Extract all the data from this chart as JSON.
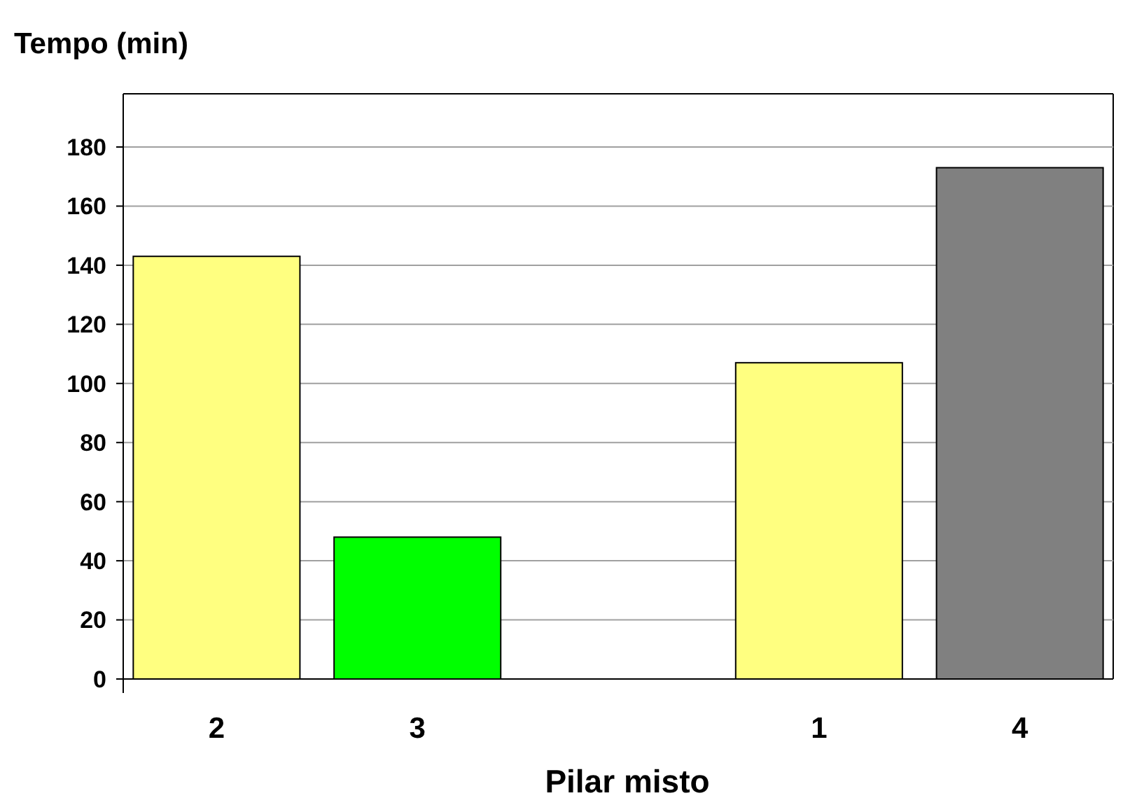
{
  "chart_data": {
    "type": "bar",
    "ylabel": "Tempo (min)",
    "xlabel": "Pilar misto",
    "categories": [
      "2",
      "3",
      null,
      "1",
      "4"
    ],
    "values": [
      143,
      48,
      null,
      107,
      173
    ],
    "colors": [
      "#ffff80",
      "#00ff00",
      null,
      "#ffff80",
      "#808080"
    ],
    "ylim": [
      0,
      198
    ],
    "yticks": [
      0,
      20,
      40,
      60,
      80,
      100,
      120,
      140,
      160,
      180
    ],
    "grid": "y"
  }
}
